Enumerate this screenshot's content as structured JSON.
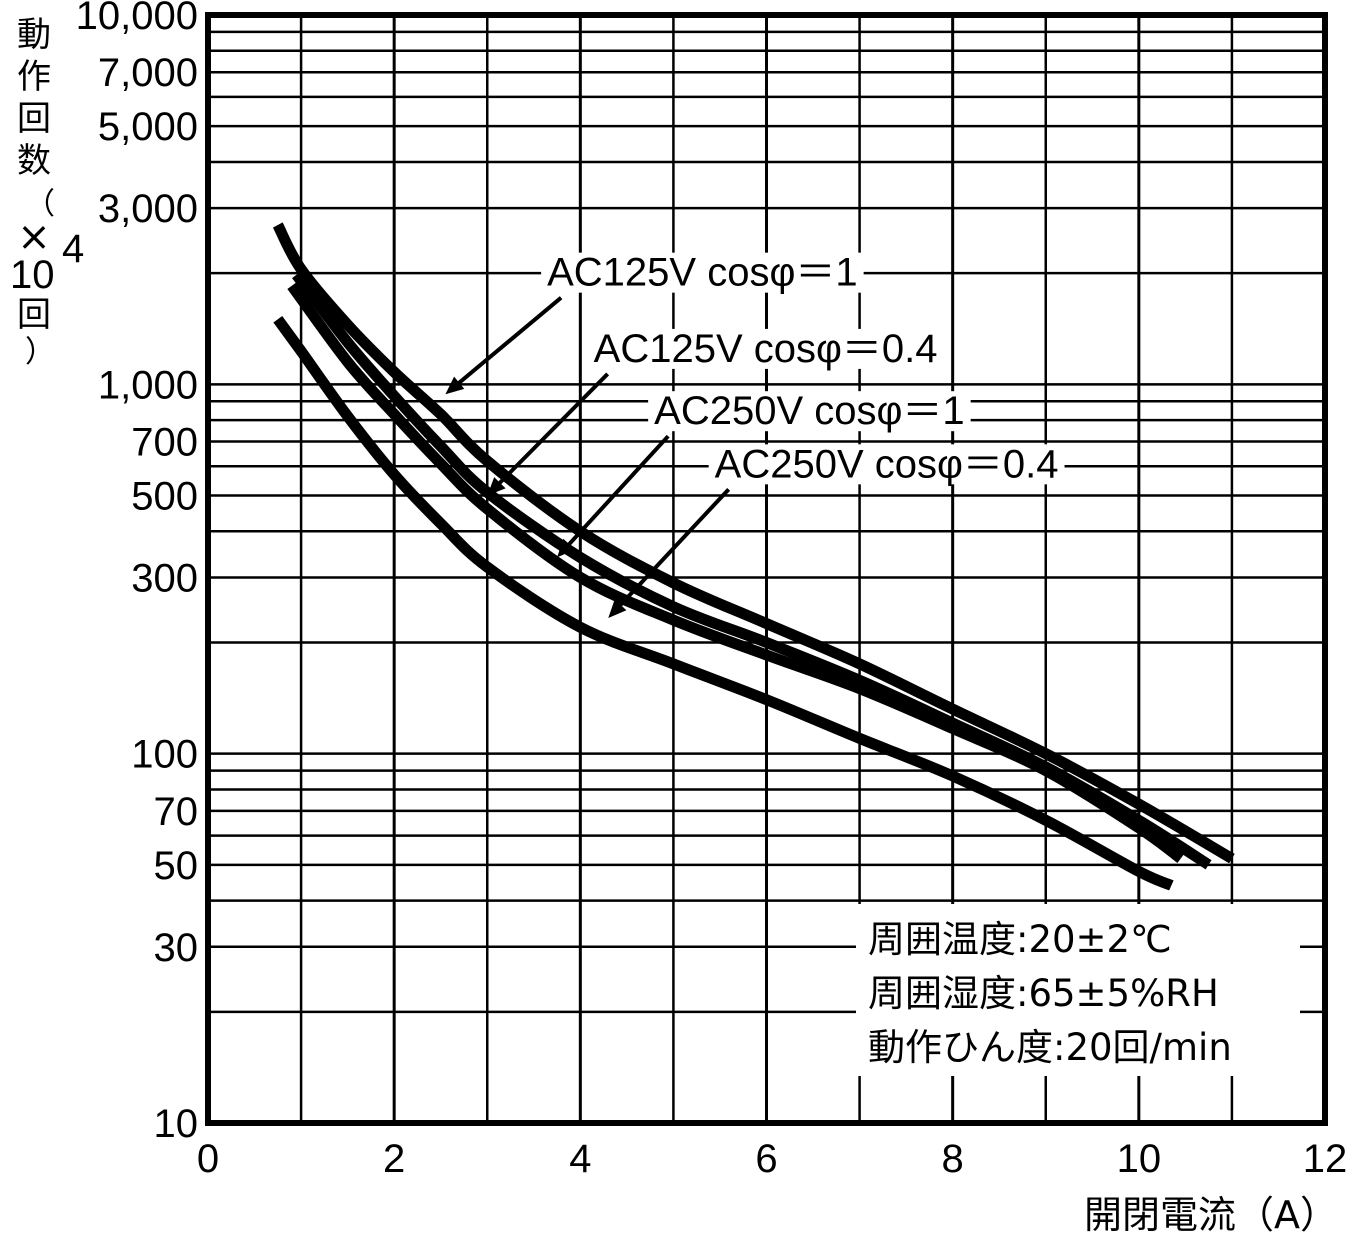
{
  "chart_data": {
    "type": "line",
    "xlabel": "開閉電流（A）",
    "ylabel": {
      "text": "動作回数（×10⁴回）",
      "chars_top": [
        "動",
        "作",
        "回",
        "数",
        "（",
        "×"
      ],
      "base": "10",
      "exp": "4",
      "chars_bottom": [
        "回",
        "）"
      ]
    },
    "xlim": [
      0,
      12
    ],
    "ylim": [
      10,
      10000
    ],
    "y_scale": "log",
    "grid": true,
    "x_ticks": [
      {
        "value": 0,
        "label": "0"
      },
      {
        "value": 2,
        "label": "2"
      },
      {
        "value": 4,
        "label": "4"
      },
      {
        "value": 6,
        "label": "6"
      },
      {
        "value": 8,
        "label": "8"
      },
      {
        "value": 10,
        "label": "10"
      },
      {
        "value": 12,
        "label": "12"
      }
    ],
    "y_ticks": [
      {
        "value": 10,
        "label": "10"
      },
      {
        "value": 30,
        "label": "30"
      },
      {
        "value": 50,
        "label": "50"
      },
      {
        "value": 70,
        "label": "70"
      },
      {
        "value": 100,
        "label": "100"
      },
      {
        "value": 300,
        "label": "300"
      },
      {
        "value": 500,
        "label": "500"
      },
      {
        "value": 700,
        "label": "700"
      },
      {
        "value": 1000,
        "label": "1,000"
      },
      {
        "value": 3000,
        "label": "3,000"
      },
      {
        "value": 5000,
        "label": "5,000"
      },
      {
        "value": 7000,
        "label": "7,000"
      },
      {
        "value": 10000,
        "label": "10,000"
      }
    ],
    "x_minor_grid": [
      1,
      3,
      5,
      7,
      9,
      11
    ],
    "y_grid": [
      10,
      20,
      30,
      40,
      50,
      60,
      70,
      80,
      90,
      100,
      200,
      300,
      400,
      500,
      600,
      700,
      800,
      900,
      1000,
      2000,
      3000,
      4000,
      5000,
      6000,
      7000,
      8000,
      9000,
      10000
    ],
    "series": [
      {
        "name": "AC125V  cosφ＝1",
        "x": [
          0.75,
          1.0,
          1.5,
          2.0,
          2.5,
          3.0,
          4.0,
          5.0,
          6.0,
          7.0,
          8.0,
          9.0,
          10.0,
          11.0
        ],
        "y": [
          2700,
          2050,
          1450,
          1080,
          830,
          620,
          400,
          290,
          225,
          175,
          132,
          100,
          73,
          52
        ]
      },
      {
        "name": "AC125V  cosφ＝0.4",
        "x": [
          0.95,
          1.5,
          2.0,
          2.5,
          3.0,
          4.0,
          5.0,
          6.0,
          7.0,
          8.0,
          9.0,
          10.0,
          10.75
        ],
        "y": [
          1980,
          1300,
          930,
          680,
          510,
          340,
          250,
          200,
          158,
          121,
          92,
          66,
          50
        ]
      },
      {
        "name": "AC250V  cosφ＝1",
        "x": [
          0.9,
          1.5,
          2.0,
          2.5,
          3.0,
          4.0,
          5.0,
          6.0,
          7.0,
          8.0,
          9.0,
          10.0,
          10.45
        ],
        "y": [
          1850,
          1150,
          830,
          610,
          460,
          300,
          230,
          185,
          150,
          117,
          90,
          63,
          52
        ]
      },
      {
        "name": "AC250V  cosφ＝0.4",
        "x": [
          0.75,
          1.0,
          1.5,
          2.0,
          2.5,
          3.0,
          4.0,
          5.0,
          6.0,
          7.0,
          8.0,
          9.0,
          10.0,
          10.35
        ],
        "y": [
          1500,
          1230,
          820,
          570,
          420,
          320,
          220,
          175,
          140,
          110,
          87,
          66,
          48,
          44
        ]
      }
    ],
    "annotations": [
      {
        "series": 0,
        "text": "AC125V  cosφ＝1",
        "text_x": 3.6,
        "text_y": 1850,
        "point_x": 2.55,
        "point_y": 940
      },
      {
        "series": 1,
        "text": "AC125V  cosφ＝0.4",
        "text_x": 4.1,
        "text_y": 1150,
        "point_x": 3.0,
        "point_y": 500
      },
      {
        "series": 2,
        "text": "AC250V  cosφ＝1",
        "text_x": 4.75,
        "text_y": 780,
        "point_x": 3.75,
        "point_y": 340
      },
      {
        "series": 3,
        "text": "AC250V  cosφ＝0.4",
        "text_x": 5.4,
        "text_y": 560,
        "point_x": 4.3,
        "point_y": 233
      }
    ],
    "notes": [
      "周囲温度:20±2℃",
      "周囲湿度:65±5%RH",
      "動作ひん度:20回/min"
    ]
  }
}
